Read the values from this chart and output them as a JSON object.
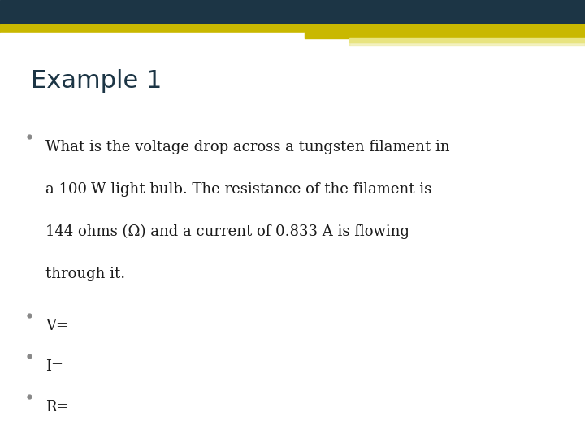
{
  "bg_color": "#ffffff",
  "header_dark_color": "#1c3545",
  "header_yellow_color": "#c9b800",
  "header_yellow_light_color": "#e8e480",
  "title": "Example 1",
  "title_color": "#1c3545",
  "title_fontsize": 22,
  "title_bold": false,
  "body_text_color": "#1a1a1a",
  "body_fontsize": 13,
  "bullet_color": "#888888",
  "body1_lines": [
    "What is the voltage drop across a tungsten filament in",
    "a 100-W light bulb. The resistance of the filament is",
    "144 ohms (Ω) and a current of 0.833 A is flowing",
    "through it."
  ],
  "item2": "V=",
  "item3": "I=",
  "item4": "R="
}
